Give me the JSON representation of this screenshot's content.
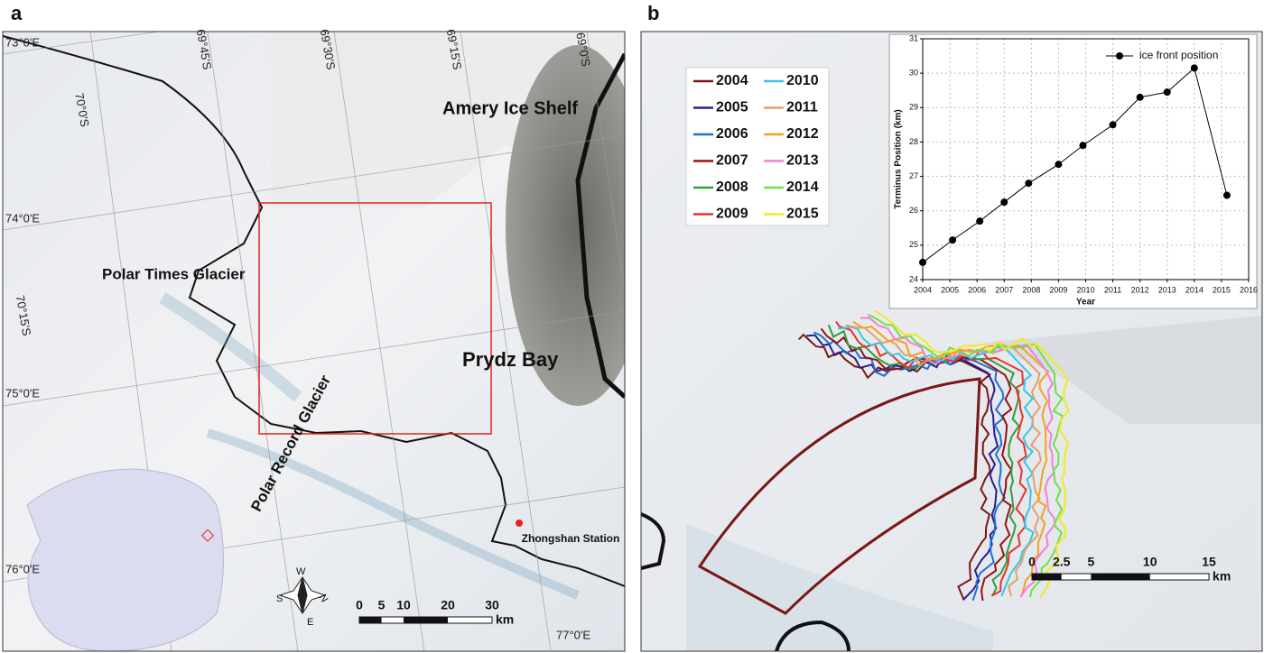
{
  "panel_a": {
    "label": "a",
    "places": [
      "Amery Ice Shelf",
      "Prydz Bay",
      "Polar Times Glacier",
      "Polar Record Glacier",
      "Zhongshan Station"
    ],
    "graticule": [
      "73°0'E",
      "74°0'E",
      "75°0'E",
      "76°0'E",
      "77°0'E",
      "70°0'S",
      "70°15'S",
      "69°45'S",
      "69°30'S",
      "69°15'S",
      "69°0'S"
    ],
    "compass": [
      "N",
      "E",
      "S",
      "W"
    ],
    "scale": {
      "ticks": [
        0,
        5,
        10,
        20,
        30
      ],
      "unit": "km"
    }
  },
  "panel_b": {
    "label": "b",
    "legend": [
      {
        "name": "2004",
        "color": "#7a1616"
      },
      {
        "name": "2005",
        "color": "#2b1d8c"
      },
      {
        "name": "2006",
        "color": "#1f6fd6"
      },
      {
        "name": "2007",
        "color": "#9a0f0f"
      },
      {
        "name": "2008",
        "color": "#2e9e3a"
      },
      {
        "name": "2009",
        "color": "#e8322a"
      },
      {
        "name": "2010",
        "color": "#35c6e8"
      },
      {
        "name": "2011",
        "color": "#e3a06a"
      },
      {
        "name": "2012",
        "color": "#f5a020"
      },
      {
        "name": "2013",
        "color": "#f080d8"
      },
      {
        "name": "2014",
        "color": "#6ee04a"
      },
      {
        "name": "2015",
        "color": "#f2ea1e"
      }
    ],
    "scale": {
      "ticks": [
        0,
        2.5,
        5,
        10,
        15
      ],
      "unit": "km"
    }
  },
  "chart_data": {
    "type": "line",
    "xlabel": "Year",
    "ylabel": "Terminus Position (km)",
    "x": [
      2004,
      2005.1,
      2006.1,
      2007,
      2007.9,
      2009,
      2009.9,
      2011,
      2012,
      2013,
      2014,
      2015.2
    ],
    "series": [
      {
        "name": "ice front position",
        "color": "#000000",
        "values": [
          24.5,
          25.15,
          25.7,
          26.25,
          26.8,
          27.35,
          27.9,
          28.5,
          29.3,
          29.45,
          30.15,
          26.45
        ]
      }
    ],
    "xlim": [
      2004,
      2016
    ],
    "xticks": [
      2004,
      2005,
      2006,
      2007,
      2008,
      2009,
      2010,
      2011,
      2012,
      2013,
      2014,
      2015,
      2016
    ],
    "ylim": [
      24,
      31
    ],
    "yticks": [
      24,
      25,
      26,
      27,
      28,
      29,
      30,
      31
    ],
    "grid": true
  }
}
